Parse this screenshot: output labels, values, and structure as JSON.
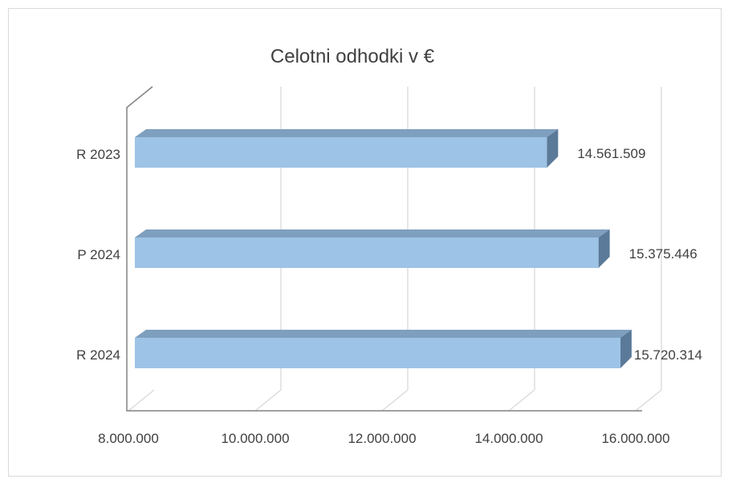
{
  "chart_data": {
    "type": "bar",
    "orientation": "horizontal",
    "title": "Celotni odhodki v €",
    "categories": [
      "R 2023",
      "P 2024",
      "R 2024"
    ],
    "values": [
      14561509,
      15375446,
      15720314
    ],
    "value_labels": [
      "14.561.509",
      "15.375.446",
      "15.720.314"
    ],
    "xlim": [
      8000000,
      16000000
    ],
    "x_ticks": [
      8000000,
      10000000,
      12000000,
      14000000,
      16000000
    ],
    "x_tick_labels": [
      "8.000.000",
      "10.000.000",
      "12.000.000",
      "14.000.000",
      "16.000.000"
    ],
    "xlabel": "",
    "ylabel": "",
    "grid": true,
    "legend": "none",
    "style": "3d",
    "colors": {
      "bar_front": "#9dc3e6",
      "bar_top": "#7f9fbf",
      "bar_side": "#5b7a99",
      "gridline": "#d9d9d9",
      "axis": "#808080",
      "text": "#404040"
    }
  }
}
